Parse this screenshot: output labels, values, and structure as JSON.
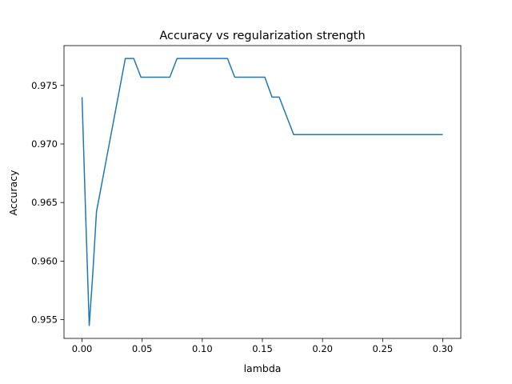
{
  "chart_data": {
    "type": "line",
    "title": "Accuracy vs regularization strength",
    "xlabel": "lambda",
    "ylabel": "Accuracy",
    "xlim": [
      -0.015,
      0.315
    ],
    "ylim": [
      0.9534,
      0.9784
    ],
    "xticks": [
      0.0,
      0.05,
      0.1,
      0.15,
      0.2,
      0.25,
      0.3
    ],
    "xtick_labels": [
      "0.00",
      "0.05",
      "0.10",
      "0.15",
      "0.20",
      "0.25",
      "0.30"
    ],
    "yticks": [
      0.955,
      0.96,
      0.965,
      0.97,
      0.975
    ],
    "ytick_labels": [
      "0.955",
      "0.960",
      "0.965",
      "0.970",
      "0.975"
    ],
    "grid": false,
    "series": [
      {
        "color": "#1f77b4",
        "x": [
          0.0,
          0.003,
          0.006,
          0.009,
          0.012,
          0.036,
          0.043,
          0.049,
          0.055,
          0.061,
          0.067,
          0.073,
          0.079,
          0.085,
          0.091,
          0.097,
          0.103,
          0.109,
          0.115,
          0.121,
          0.127,
          0.133,
          0.139,
          0.145,
          0.152,
          0.158,
          0.164,
          0.17,
          0.176,
          0.182,
          0.188,
          0.2,
          0.22,
          0.24,
          0.26,
          0.28,
          0.3
        ],
        "y": [
          0.974,
          0.964,
          0.9545,
          0.959,
          0.9642,
          0.9773,
          0.9773,
          0.9757,
          0.9757,
          0.9757,
          0.9757,
          0.9757,
          0.9773,
          0.9773,
          0.9773,
          0.9773,
          0.9773,
          0.9773,
          0.9773,
          0.9773,
          0.9757,
          0.9757,
          0.9757,
          0.9757,
          0.9757,
          0.974,
          0.974,
          0.9724,
          0.9708,
          0.9708,
          0.9708,
          0.9708,
          0.9708,
          0.9708,
          0.9708,
          0.9708,
          0.9708
        ]
      }
    ]
  }
}
